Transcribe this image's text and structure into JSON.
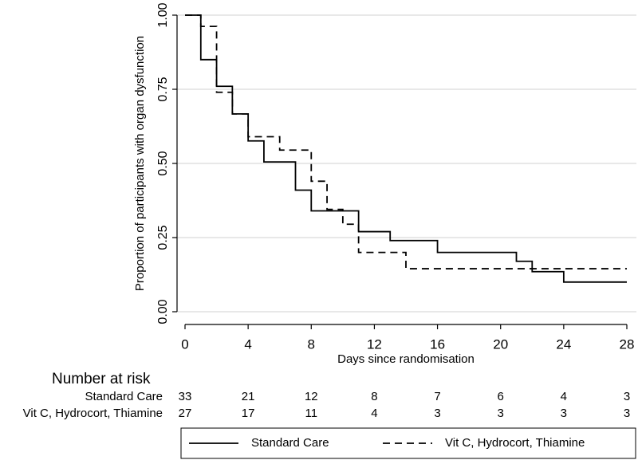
{
  "chart_data": {
    "type": "step",
    "xlabel": "Days since randomisation",
    "ylabel": "Proportion of participants with organ dysfunction",
    "xlim": [
      0,
      28
    ],
    "ylim": [
      0,
      1
    ],
    "xticks": [
      0,
      4,
      8,
      12,
      16,
      20,
      24,
      28
    ],
    "yticks": [
      {
        "value": 0,
        "label": "0.00"
      },
      {
        "value": 0.25,
        "label": "0.25"
      },
      {
        "value": 0.5,
        "label": "0.50"
      },
      {
        "value": 0.75,
        "label": "0.75"
      },
      {
        "value": 1,
        "label": "1.00"
      }
    ],
    "grid": true,
    "risk_title": "Number at risk",
    "series": [
      {
        "name": "Standard Care",
        "color": "#000000",
        "dash": false,
        "x": [
          0,
          1,
          2,
          3,
          4,
          5,
          7,
          8,
          11,
          13,
          16,
          21,
          22,
          24,
          28
        ],
        "values": [
          1.0,
          0.85,
          0.76,
          0.667,
          0.576,
          0.505,
          0.41,
          0.34,
          0.27,
          0.24,
          0.2,
          0.17,
          0.135,
          0.1,
          0.1
        ],
        "at_risk": [
          33,
          21,
          12,
          8,
          7,
          6,
          4,
          3
        ]
      },
      {
        "name": "Vit C, Hydrocort, Thiamine",
        "color": "#000000",
        "dash": true,
        "x": [
          0,
          1,
          2,
          3,
          4,
          6,
          8,
          9,
          10,
          11,
          14,
          28
        ],
        "values": [
          1.0,
          0.962,
          0.74,
          0.667,
          0.59,
          0.545,
          0.44,
          0.345,
          0.295,
          0.2,
          0.145,
          0.145
        ],
        "at_risk": [
          27,
          17,
          11,
          4,
          3,
          3,
          3,
          3
        ]
      }
    ]
  }
}
